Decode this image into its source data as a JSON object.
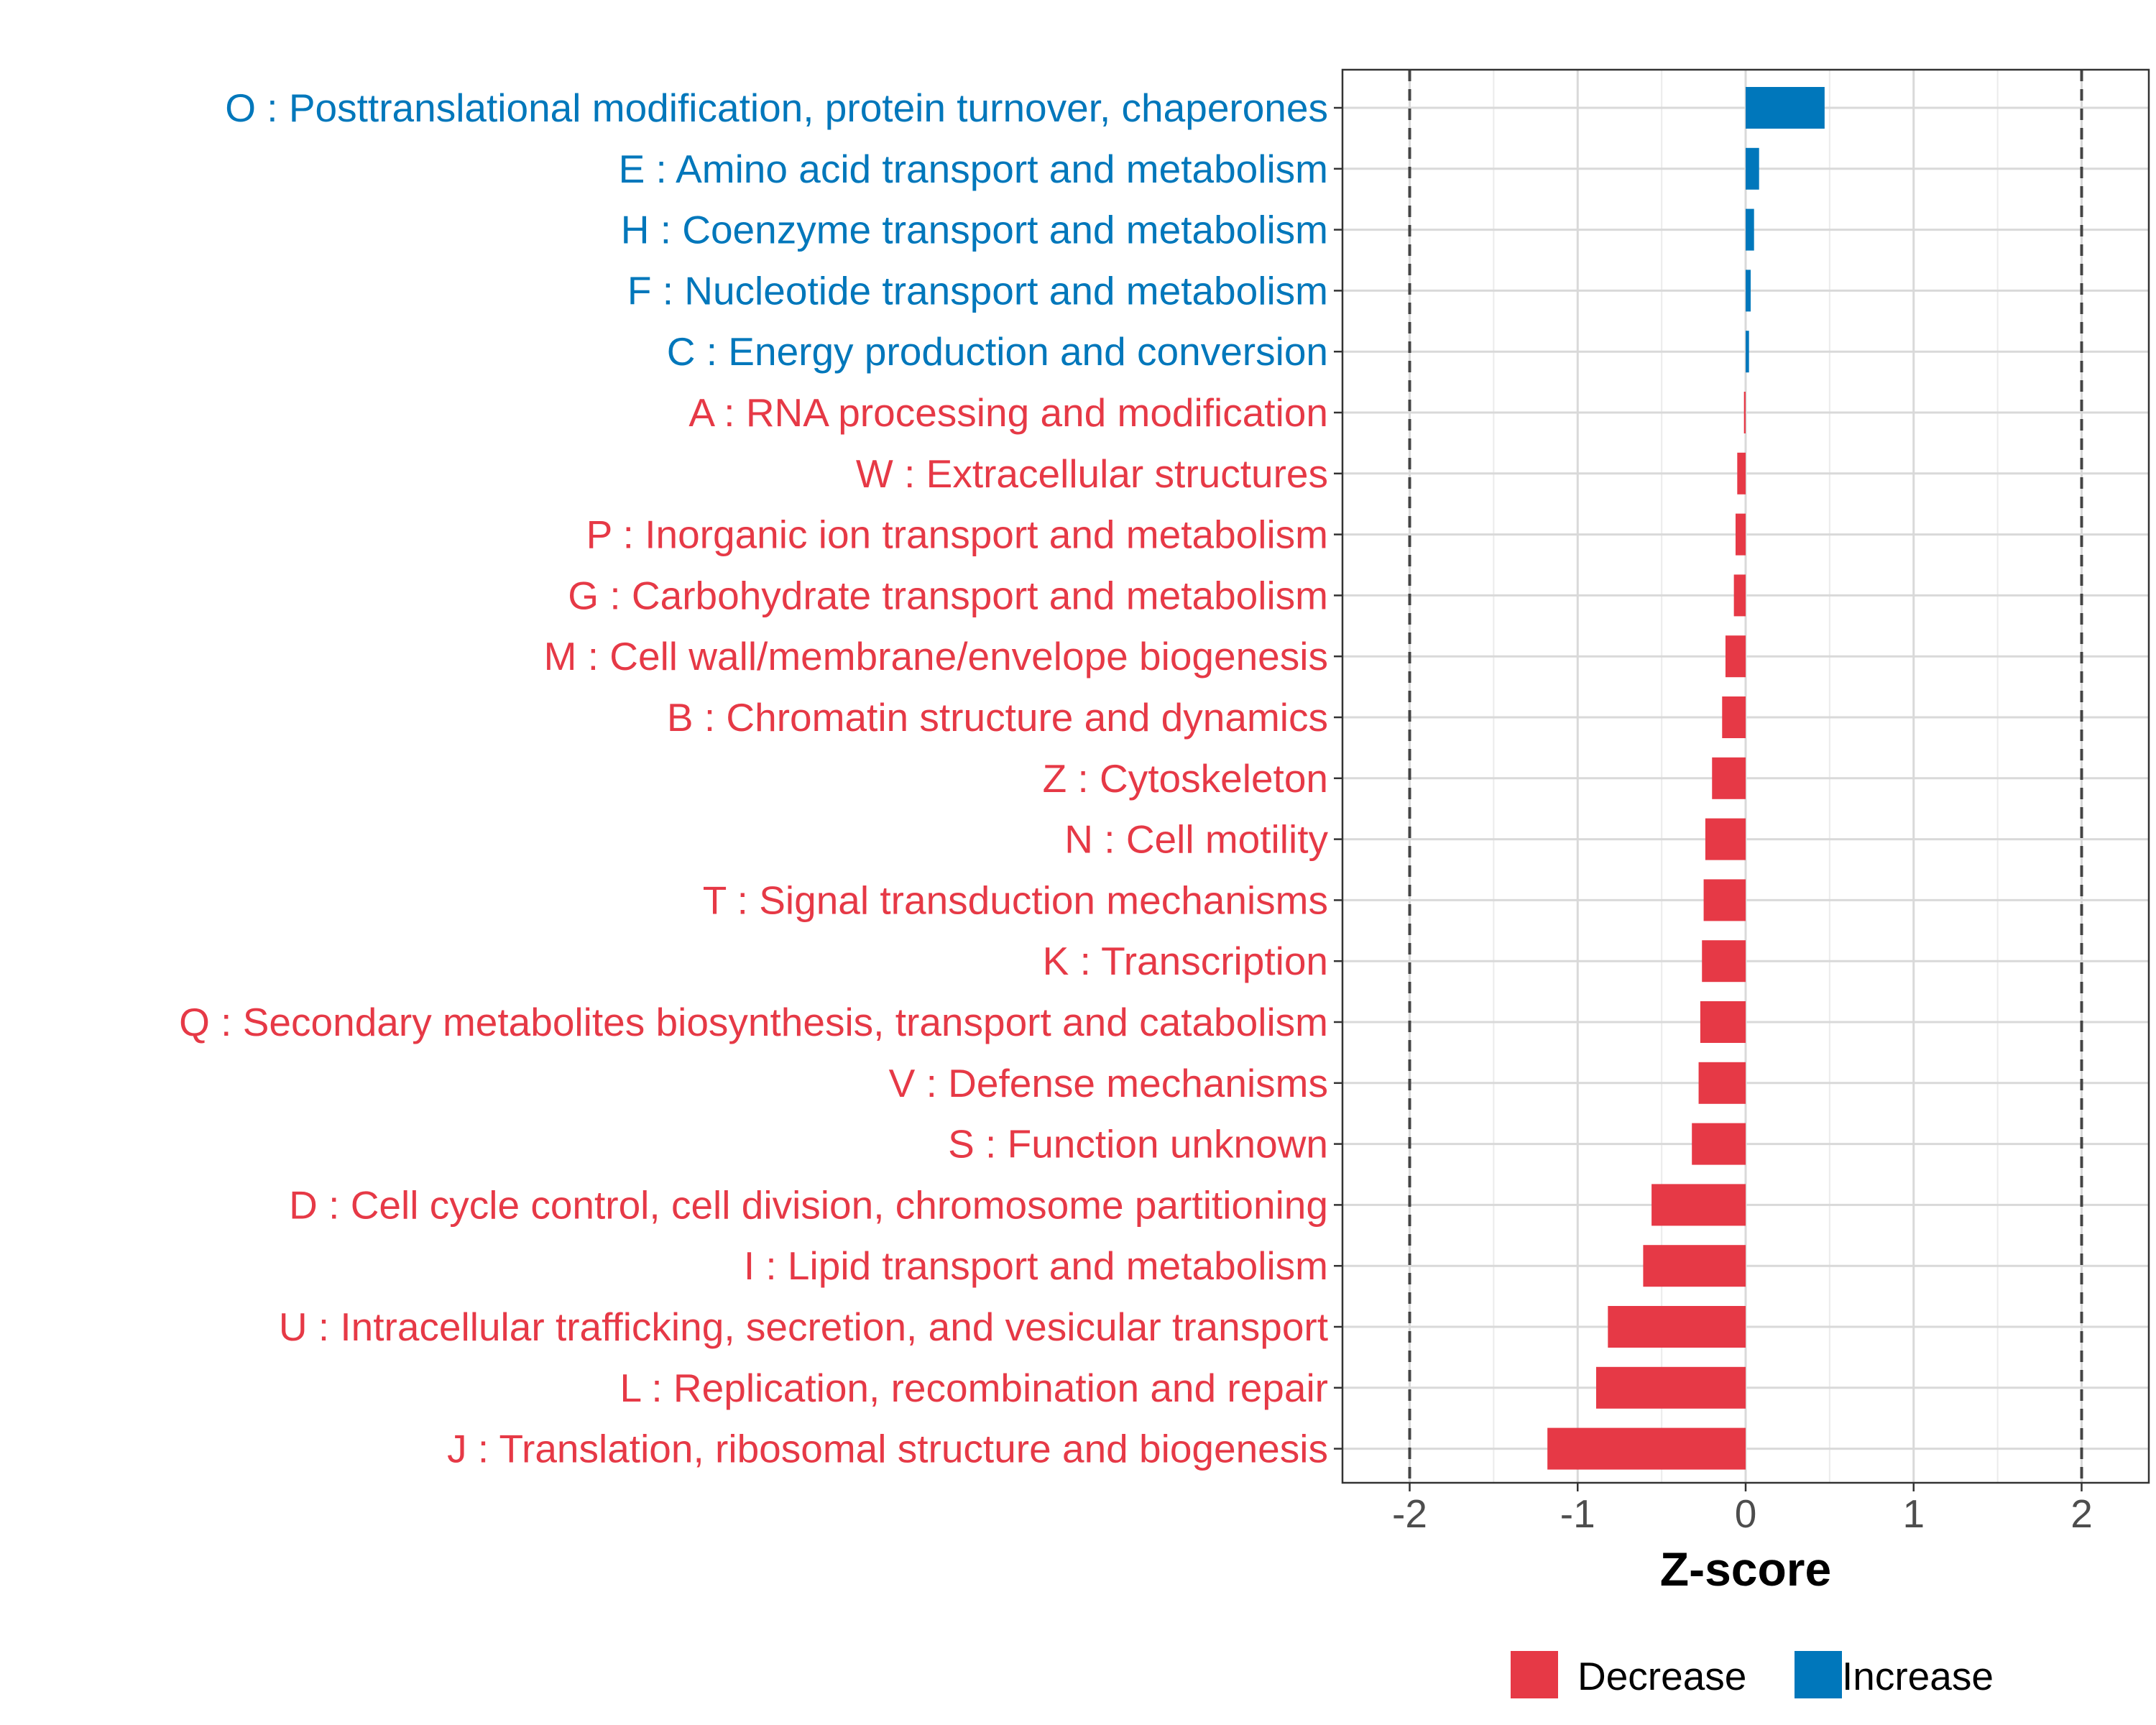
{
  "chart_data": {
    "type": "bar",
    "orientation": "horizontal",
    "xlabel": "Z-score",
    "xlim": [
      -2.4,
      2.4
    ],
    "xticks": [
      -2,
      -1,
      0,
      1,
      2
    ],
    "xtick_labels": [
      "-2",
      "-1",
      "0",
      "1",
      "2"
    ],
    "reference_lines": [
      -2,
      2
    ],
    "grid": true,
    "legend_position": "bottom",
    "colors": {
      "Decrease": "#e63946",
      "Increase": "#0077bb"
    },
    "legend": [
      {
        "label": "Decrease",
        "color": "#e63946"
      },
      {
        "label": "Increase",
        "color": "#0077bb"
      }
    ],
    "bars": [
      {
        "label": "O : Posttranslational modification, protein turnover, chaperones",
        "value": 0.47,
        "group": "Increase"
      },
      {
        "label": "E : Amino acid transport and metabolism",
        "value": 0.08,
        "group": "Increase"
      },
      {
        "label": "H : Coenzyme transport and metabolism",
        "value": 0.05,
        "group": "Increase"
      },
      {
        "label": "F : Nucleotide transport and metabolism",
        "value": 0.03,
        "group": "Increase"
      },
      {
        "label": "C : Energy production and conversion",
        "value": 0.02,
        "group": "Increase"
      },
      {
        "label": "A : RNA processing and modification",
        "value": -0.01,
        "group": "Decrease"
      },
      {
        "label": "W : Extracellular structures",
        "value": -0.05,
        "group": "Decrease"
      },
      {
        "label": "P : Inorganic ion transport and metabolism",
        "value": -0.06,
        "group": "Decrease"
      },
      {
        "label": "G : Carbohydrate transport and metabolism",
        "value": -0.07,
        "group": "Decrease"
      },
      {
        "label": "M : Cell wall/membrane/envelope biogenesis",
        "value": -0.12,
        "group": "Decrease"
      },
      {
        "label": "B : Chromatin structure and dynamics",
        "value": -0.14,
        "group": "Decrease"
      },
      {
        "label": "Z : Cytoskeleton",
        "value": -0.2,
        "group": "Decrease"
      },
      {
        "label": "N : Cell motility",
        "value": -0.24,
        "group": "Decrease"
      },
      {
        "label": "T : Signal transduction mechanisms",
        "value": -0.25,
        "group": "Decrease"
      },
      {
        "label": "K : Transcription",
        "value": -0.26,
        "group": "Decrease"
      },
      {
        "label": "Q : Secondary metabolites biosynthesis, transport and catabolism",
        "value": -0.27,
        "group": "Decrease"
      },
      {
        "label": "V : Defense mechanisms",
        "value": -0.28,
        "group": "Decrease"
      },
      {
        "label": "S : Function unknown",
        "value": -0.32,
        "group": "Decrease"
      },
      {
        "label": "D : Cell cycle control, cell division, chromosome partitioning",
        "value": -0.56,
        "group": "Decrease"
      },
      {
        "label": "I : Lipid transport and metabolism",
        "value": -0.61,
        "group": "Decrease"
      },
      {
        "label": "U : Intracellular trafficking, secretion, and vesicular transport",
        "value": -0.82,
        "group": "Decrease"
      },
      {
        "label": "L : Replication, recombination and repair",
        "value": -0.89,
        "group": "Decrease"
      },
      {
        "label": "J : Translation, ribosomal structure and biogenesis",
        "value": -1.18,
        "group": "Decrease"
      }
    ]
  }
}
